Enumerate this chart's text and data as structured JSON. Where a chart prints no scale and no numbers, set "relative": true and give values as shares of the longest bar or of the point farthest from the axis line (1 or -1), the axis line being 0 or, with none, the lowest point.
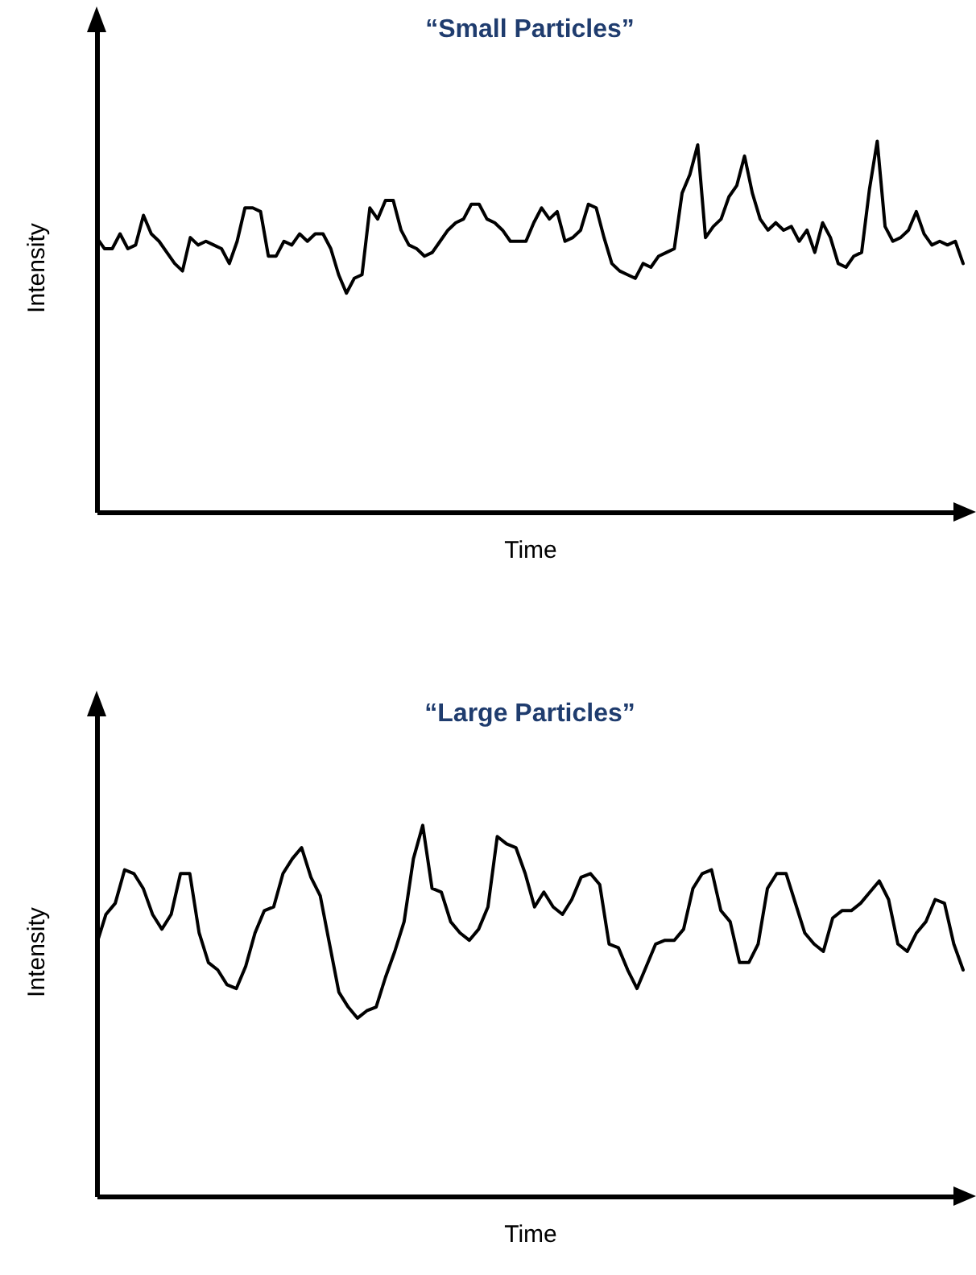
{
  "chart_data": [
    {
      "type": "line",
      "title": "“Small Particles”",
      "xlabel": "Time",
      "ylabel": "Intensity",
      "relative": true,
      "categories": [
        null,
        null,
        null,
        null,
        null,
        null,
        null,
        null,
        null,
        null,
        null,
        null,
        null,
        null,
        null,
        null,
        null,
        null,
        null,
        null,
        null,
        null,
        null,
        null,
        null,
        null,
        null,
        null,
        null,
        null,
        null,
        null,
        null,
        null,
        null,
        null,
        null,
        null,
        null,
        null,
        null,
        null,
        null,
        null,
        null,
        null,
        null,
        null,
        null,
        null,
        null,
        null,
        null,
        null,
        null,
        null,
        null,
        null,
        null,
        null,
        null,
        null,
        null,
        null,
        null,
        null,
        null,
        null,
        null,
        null,
        null,
        null,
        null,
        null,
        null,
        null,
        null,
        null,
        null,
        null,
        null,
        null,
        null,
        null,
        null,
        null,
        null,
        null,
        null,
        null,
        null,
        null,
        null,
        null,
        null,
        null,
        null,
        null,
        null,
        null,
        null,
        null,
        null,
        null,
        null,
        null,
        null,
        null,
        null,
        null,
        null,
        null
      ],
      "series": [
        {
          "color": "#000000",
          "values": [
            0.74,
            0.71,
            0.71,
            0.75,
            0.71,
            0.72,
            0.8,
            0.75,
            0.73,
            0.7,
            0.67,
            0.65,
            0.74,
            0.72,
            0.73,
            0.72,
            0.71,
            0.67,
            0.73,
            0.82,
            0.82,
            0.81,
            0.69,
            0.69,
            0.73,
            0.72,
            0.75,
            0.73,
            0.75,
            0.75,
            0.71,
            0.64,
            0.59,
            0.63,
            0.64,
            0.82,
            0.79,
            0.84,
            0.84,
            0.76,
            0.72,
            0.71,
            0.69,
            0.7,
            0.73,
            0.76,
            0.78,
            0.79,
            0.83,
            0.83,
            0.79,
            0.78,
            0.76,
            0.73,
            0.73,
            0.73,
            0.78,
            0.82,
            0.79,
            0.81,
            0.73,
            0.74,
            0.76,
            0.83,
            0.82,
            0.74,
            0.67,
            0.65,
            0.64,
            0.63,
            0.67,
            0.66,
            0.69,
            0.7,
            0.71,
            0.86,
            0.91,
            0.99,
            0.74,
            0.77,
            0.79,
            0.85,
            0.88,
            0.96,
            0.86,
            0.79,
            0.76,
            0.78,
            0.76,
            0.77,
            0.73,
            0.76,
            0.7,
            0.78,
            0.74,
            0.67,
            0.66,
            0.69,
            0.7,
            0.87,
            1.0,
            0.77,
            0.73,
            0.74,
            0.76,
            0.81,
            0.75,
            0.72,
            0.73,
            0.72,
            0.73,
            0.67
          ]
        }
      ]
    },
    {
      "type": "line",
      "title": "“Large Particles”",
      "xlabel": "Time",
      "ylabel": "Intensity",
      "relative": true,
      "categories": [
        null,
        null,
        null,
        null,
        null,
        null,
        null,
        null,
        null,
        null,
        null,
        null,
        null,
        null,
        null,
        null,
        null,
        null,
        null,
        null,
        null,
        null,
        null,
        null,
        null,
        null,
        null,
        null,
        null,
        null,
        null,
        null,
        null,
        null,
        null,
        null,
        null,
        null,
        null,
        null,
        null,
        null,
        null,
        null,
        null,
        null,
        null,
        null,
        null,
        null,
        null,
        null,
        null,
        null,
        null,
        null,
        null,
        null,
        null,
        null,
        null,
        null,
        null,
        null,
        null,
        null,
        null,
        null,
        null,
        null,
        null,
        null,
        null,
        null,
        null,
        null,
        null,
        null,
        null,
        null,
        null,
        null,
        null,
        null,
        null,
        null,
        null,
        null,
        null,
        null,
        null,
        null,
        null,
        null
      ],
      "series": [
        {
          "color": "#000000",
          "values": [
            0.68,
            0.76,
            0.79,
            0.88,
            0.87,
            0.83,
            0.76,
            0.72,
            0.76,
            0.87,
            0.87,
            0.71,
            0.63,
            0.61,
            0.57,
            0.56,
            0.62,
            0.71,
            0.77,
            0.78,
            0.87,
            0.91,
            0.94,
            0.86,
            0.81,
            0.68,
            0.55,
            0.51,
            0.48,
            0.5,
            0.51,
            0.59,
            0.66,
            0.74,
            0.91,
            1.0,
            0.83,
            0.82,
            0.74,
            0.71,
            0.69,
            0.72,
            0.78,
            0.97,
            0.95,
            0.94,
            0.87,
            0.78,
            0.82,
            0.78,
            0.76,
            0.8,
            0.86,
            0.87,
            0.84,
            0.68,
            0.67,
            0.61,
            0.56,
            0.62,
            0.68,
            0.69,
            0.69,
            0.72,
            0.83,
            0.87,
            0.88,
            0.77,
            0.74,
            0.63,
            0.63,
            0.68,
            0.83,
            0.87,
            0.87,
            0.79,
            0.71,
            0.68,
            0.66,
            0.75,
            0.77,
            0.77,
            0.79,
            0.82,
            0.85,
            0.8,
            0.68,
            0.66,
            0.71,
            0.74,
            0.8,
            0.79,
            0.68,
            0.61
          ]
        }
      ]
    }
  ]
}
